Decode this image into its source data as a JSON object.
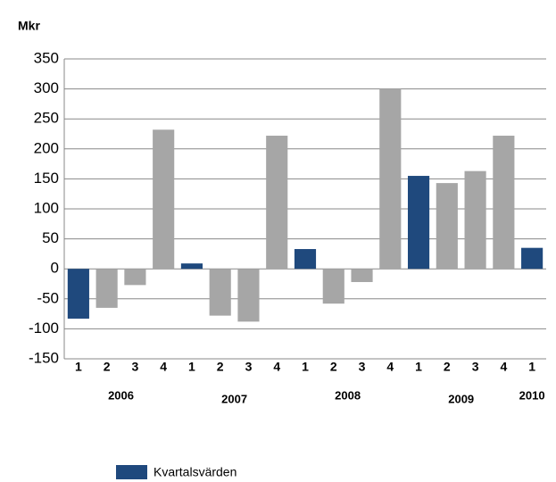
{
  "chart_data": {
    "type": "bar",
    "title": "Mkr",
    "categories": [
      "1",
      "2",
      "3",
      "4",
      "1",
      "2",
      "3",
      "4",
      "1",
      "2",
      "3",
      "4",
      "1",
      "2",
      "3",
      "4",
      "1"
    ],
    "x_groups": [
      "2006",
      null,
      null,
      null,
      "2007",
      null,
      null,
      null,
      "2008",
      null,
      null,
      null,
      "2009",
      null,
      null,
      null,
      "2010"
    ],
    "series": [
      {
        "name": "Kvartalsvärden",
        "color": "#1f497d",
        "values": [
          -83,
          -65,
          -27,
          232,
          9,
          -78,
          -88,
          222,
          33,
          -58,
          -22,
          300,
          155,
          143,
          163,
          222,
          35
        ],
        "bar_colors": [
          "#1f497d",
          "#a6a6a6",
          "#a6a6a6",
          "#a6a6a6",
          "#1f497d",
          "#a6a6a6",
          "#a6a6a6",
          "#a6a6a6",
          "#1f497d",
          "#a6a6a6",
          "#a6a6a6",
          "#a6a6a6",
          "#1f497d",
          "#a6a6a6",
          "#a6a6a6",
          "#a6a6a6",
          "#1f497d"
        ]
      }
    ],
    "ylim": [
      -150,
      350
    ],
    "yticks": [
      -150,
      -100,
      -50,
      0,
      50,
      100,
      150,
      200,
      250,
      300,
      350
    ],
    "grid": true
  }
}
